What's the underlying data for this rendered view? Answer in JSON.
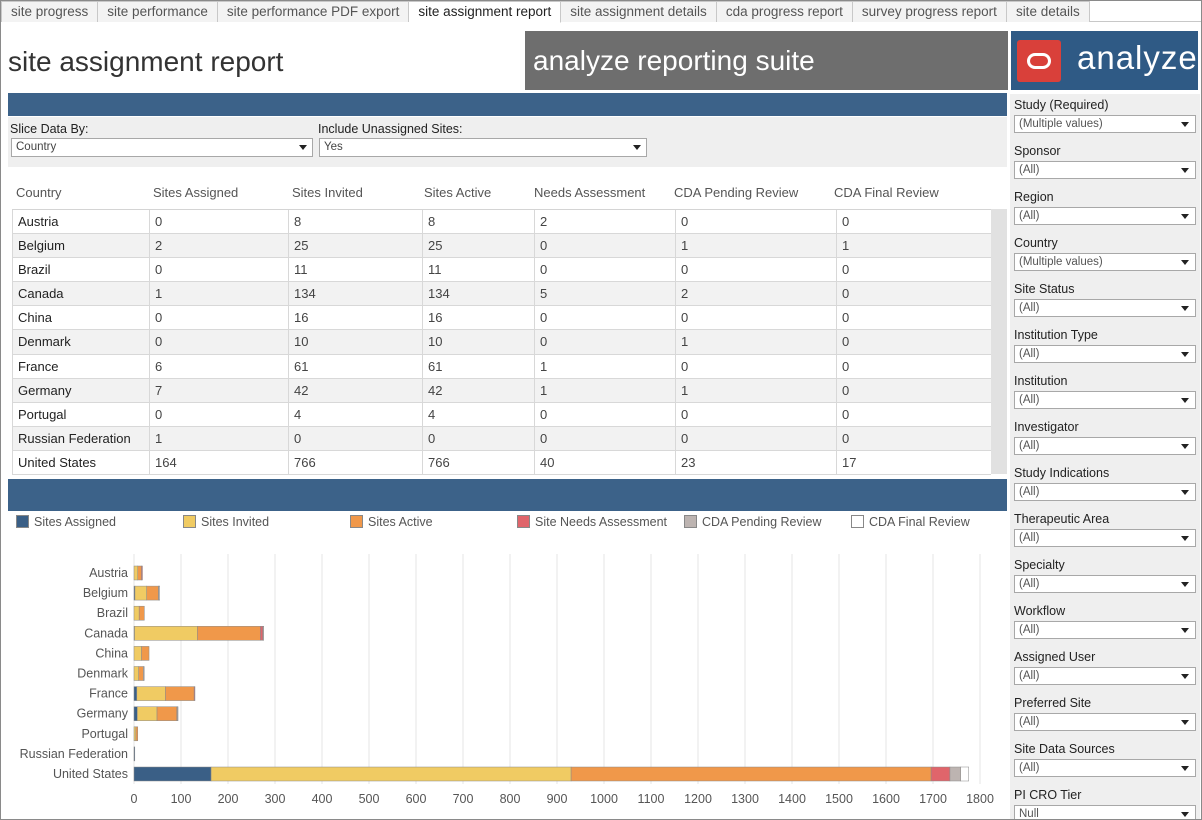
{
  "tabs": [
    {
      "label": "site progress",
      "active": false
    },
    {
      "label": "site performance",
      "active": false
    },
    {
      "label": "site performance PDF export",
      "active": false
    },
    {
      "label": "site assignment report",
      "active": true
    },
    {
      "label": "site assignment details",
      "active": false
    },
    {
      "label": "cda progress report",
      "active": false
    },
    {
      "label": "survey progress report",
      "active": false
    },
    {
      "label": "site details",
      "active": false
    }
  ],
  "header": {
    "title": "site assignment report",
    "suite": "analyze reporting suite",
    "logo_text": "analyze"
  },
  "filters": {
    "slice_label": "Slice Data By:",
    "slice_value": "Country",
    "unassigned_label": "Include Unassigned Sites:",
    "unassigned_value": "Yes"
  },
  "table": {
    "columns": [
      "Country",
      "Sites Assigned",
      "Sites Invited",
      "Sites Active",
      "Needs Assessment",
      "CDA Pending Review",
      "CDA Final Review"
    ],
    "rows": [
      [
        "Austria",
        "0",
        "8",
        "8",
        "2",
        "0",
        "0"
      ],
      [
        "Belgium",
        "2",
        "25",
        "25",
        "0",
        "1",
        "1"
      ],
      [
        "Brazil",
        "0",
        "11",
        "11",
        "0",
        "0",
        "0"
      ],
      [
        "Canada",
        "1",
        "134",
        "134",
        "5",
        "2",
        "0"
      ],
      [
        "China",
        "0",
        "16",
        "16",
        "0",
        "0",
        "0"
      ],
      [
        "Denmark",
        "0",
        "10",
        "10",
        "0",
        "1",
        "0"
      ],
      [
        "France",
        "6",
        "61",
        "61",
        "1",
        "0",
        "0"
      ],
      [
        "Germany",
        "7",
        "42",
        "42",
        "1",
        "1",
        "0"
      ],
      [
        "Portugal",
        "0",
        "4",
        "4",
        "0",
        "0",
        "0"
      ],
      [
        "Russian Federation",
        "1",
        "0",
        "0",
        "0",
        "0",
        "0"
      ],
      [
        "United States",
        "164",
        "766",
        "766",
        "40",
        "23",
        "17"
      ]
    ]
  },
  "legend": [
    {
      "label": "Sites Assigned",
      "color": "#3a5f86"
    },
    {
      "label": "Sites Invited",
      "color": "#f0cb63"
    },
    {
      "label": "Sites Active",
      "color": "#f0984a"
    },
    {
      "label": "Site Needs Assessment",
      "color": "#e0656b"
    },
    {
      "label": "CDA Pending Review",
      "color": "#bdb4b1"
    },
    {
      "label": "CDA Final Review",
      "color": "#ffffff"
    }
  ],
  "chart_data": {
    "type": "bar",
    "orientation": "horizontal",
    "stacked": true,
    "title": "",
    "xlabel": "",
    "ylabel": "",
    "categories": [
      "Austria",
      "Belgium",
      "Brazil",
      "Canada",
      "China",
      "Denmark",
      "France",
      "Germany",
      "Portugal",
      "Russian Federation",
      "United States"
    ],
    "series": [
      {
        "name": "Sites Assigned",
        "values": [
          0,
          2,
          0,
          1,
          0,
          0,
          6,
          7,
          0,
          1,
          164
        ]
      },
      {
        "name": "Sites Invited",
        "values": [
          8,
          25,
          11,
          134,
          16,
          10,
          61,
          42,
          4,
          0,
          766
        ]
      },
      {
        "name": "Sites Active",
        "values": [
          8,
          25,
          11,
          134,
          16,
          10,
          61,
          42,
          4,
          0,
          766
        ]
      },
      {
        "name": "Site Needs Assessment",
        "values": [
          2,
          0,
          0,
          5,
          0,
          0,
          1,
          1,
          0,
          0,
          40
        ]
      },
      {
        "name": "CDA Pending Review",
        "values": [
          0,
          1,
          0,
          2,
          0,
          1,
          0,
          1,
          0,
          0,
          23
        ]
      },
      {
        "name": "CDA Final Review",
        "values": [
          0,
          1,
          0,
          0,
          0,
          0,
          0,
          0,
          0,
          0,
          17
        ]
      }
    ],
    "xlim": [
      0,
      1800
    ],
    "xticks": [
      "0",
      "100",
      "200",
      "300",
      "400",
      "500",
      "600",
      "700",
      "800",
      "900",
      "1000",
      "1100",
      "1200",
      "1300",
      "1400",
      "1500",
      "1600",
      "1700",
      "1800"
    ],
    "grid": true,
    "legend_position": "top"
  },
  "right_panel": [
    {
      "label": "Study (Required)",
      "value": "(Multiple values)"
    },
    {
      "label": "Sponsor",
      "value": "(All)"
    },
    {
      "label": "Region",
      "value": "(All)"
    },
    {
      "label": "Country",
      "value": "(Multiple values)"
    },
    {
      "label": "Site Status",
      "value": "(All)"
    },
    {
      "label": "Institution Type",
      "value": "(All)"
    },
    {
      "label": "Institution",
      "value": "(All)"
    },
    {
      "label": "Investigator",
      "value": "(All)"
    },
    {
      "label": "Study Indications",
      "value": "(All)"
    },
    {
      "label": "Therapeutic Area",
      "value": "(All)"
    },
    {
      "label": "Specialty",
      "value": "(All)"
    },
    {
      "label": "Workflow",
      "value": "(All)"
    },
    {
      "label": "Assigned User",
      "value": "(All)"
    },
    {
      "label": "Preferred Site",
      "value": "(All)"
    },
    {
      "label": "Site Data Sources",
      "value": "(All)"
    },
    {
      "label": "PI CRO Tier",
      "value": "Null"
    }
  ]
}
